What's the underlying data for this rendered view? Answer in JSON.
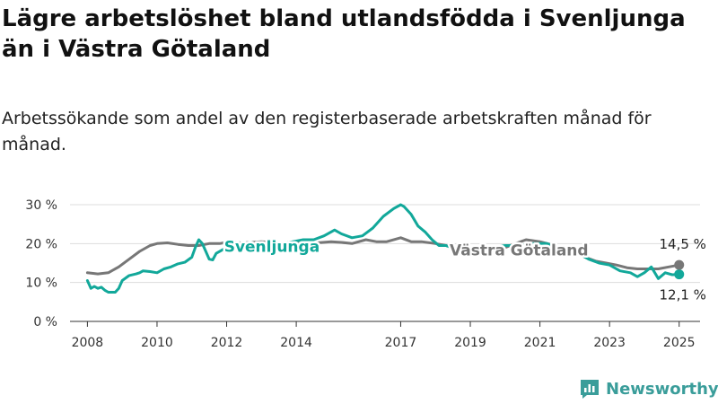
{
  "title": "Lägre arbetslöshet bland utlandsfödda i Svenljunga än i Västra Götaland",
  "subtitle": "Arbetssökande som andel av den registerbaserade arbetskraften månad för månad.",
  "brand": {
    "name": "Newsworthy",
    "icon": "newsworthy-logo-icon"
  },
  "colors": {
    "svenljunga": "#12a89a",
    "vastra": "#777777",
    "grid": "#dddddd",
    "axis": "#333333"
  },
  "chart_data": {
    "type": "line",
    "ylim": [
      0,
      30
    ],
    "yticks": [
      {
        "value": 0,
        "label": "0 %"
      },
      {
        "value": 10,
        "label": "10 %"
      },
      {
        "value": 20,
        "label": "20 %"
      },
      {
        "value": 30,
        "label": "30 %"
      }
    ],
    "xlim": [
      2007.5,
      2025.6
    ],
    "xticks": [
      {
        "value": 2008,
        "label": "2008"
      },
      {
        "value": 2010,
        "label": "2010"
      },
      {
        "value": 2012,
        "label": "2012"
      },
      {
        "value": 2014,
        "label": "2014"
      },
      {
        "value": 2017,
        "label": "2017"
      },
      {
        "value": 2019,
        "label": "2019"
      },
      {
        "value": 2021,
        "label": "2021"
      },
      {
        "value": 2023,
        "label": "2023"
      },
      {
        "value": 2025,
        "label": "2025"
      }
    ],
    "series": [
      {
        "name": "Svenljunga",
        "color": "#12a89a",
        "end_label": "12,1 %",
        "points": [
          [
            2008.0,
            10.5
          ],
          [
            2008.1,
            8.5
          ],
          [
            2008.2,
            9.0
          ],
          [
            2008.3,
            8.5
          ],
          [
            2008.4,
            8.8
          ],
          [
            2008.5,
            8.0
          ],
          [
            2008.6,
            7.5
          ],
          [
            2008.8,
            7.5
          ],
          [
            2008.9,
            8.5
          ],
          [
            2009.0,
            10.5
          ],
          [
            2009.2,
            11.8
          ],
          [
            2009.4,
            12.2
          ],
          [
            2009.5,
            12.5
          ],
          [
            2009.6,
            13.0
          ],
          [
            2009.8,
            12.8
          ],
          [
            2010.0,
            12.5
          ],
          [
            2010.2,
            13.5
          ],
          [
            2010.4,
            14.0
          ],
          [
            2010.6,
            14.8
          ],
          [
            2010.8,
            15.2
          ],
          [
            2011.0,
            16.5
          ],
          [
            2011.1,
            19.0
          ],
          [
            2011.2,
            21.0
          ],
          [
            2011.3,
            20.0
          ],
          [
            2011.4,
            18.0
          ],
          [
            2011.5,
            16.0
          ],
          [
            2011.6,
            15.8
          ],
          [
            2011.7,
            17.5
          ],
          [
            2011.9,
            18.5
          ],
          [
            2012.1,
            18.5
          ],
          [
            2012.3,
            18.8
          ],
          [
            2012.5,
            19.0
          ],
          [
            2012.8,
            18.5
          ],
          [
            2013.0,
            19.0
          ],
          [
            2013.3,
            19.5
          ],
          [
            2013.6,
            20.0
          ],
          [
            2013.9,
            20.5
          ],
          [
            2014.2,
            21.0
          ],
          [
            2014.5,
            21.0
          ],
          [
            2014.8,
            22.0
          ],
          [
            2015.1,
            23.5
          ],
          [
            2015.3,
            22.5
          ],
          [
            2015.6,
            21.5
          ],
          [
            2015.9,
            22.0
          ],
          [
            2016.2,
            24.0
          ],
          [
            2016.5,
            27.0
          ],
          [
            2016.8,
            29.0
          ],
          [
            2017.0,
            30.0
          ],
          [
            2017.1,
            29.5
          ],
          [
            2017.3,
            27.5
          ],
          [
            2017.5,
            24.5
          ],
          [
            2017.7,
            23.0
          ],
          [
            2017.9,
            21.0
          ],
          [
            2018.1,
            19.5
          ],
          [
            2018.3,
            19.5
          ],
          [
            2018.6,
            18.5
          ],
          [
            2019.0,
            18.5
          ],
          [
            2019.3,
            18.8
          ],
          [
            2019.6,
            19.0
          ],
          [
            2020.0,
            19.5
          ],
          [
            2020.4,
            19.5
          ],
          [
            2020.8,
            20.0
          ],
          [
            2021.2,
            20.0
          ],
          [
            2021.5,
            19.0
          ],
          [
            2021.8,
            18.0
          ],
          [
            2022.1,
            17.5
          ],
          [
            2022.4,
            16.0
          ],
          [
            2022.7,
            15.0
          ],
          [
            2023.0,
            14.5
          ],
          [
            2023.3,
            13.0
          ],
          [
            2023.6,
            12.5
          ],
          [
            2023.8,
            11.5
          ],
          [
            2024.0,
            12.5
          ],
          [
            2024.2,
            14.0
          ],
          [
            2024.4,
            11.0
          ],
          [
            2024.6,
            12.5
          ],
          [
            2024.8,
            12.0
          ],
          [
            2025.0,
            12.1
          ]
        ]
      },
      {
        "name": "Västra Götaland",
        "color": "#777777",
        "end_label": "14,5 %",
        "points": [
          [
            2008.0,
            12.5
          ],
          [
            2008.3,
            12.2
          ],
          [
            2008.6,
            12.5
          ],
          [
            2008.9,
            14.0
          ],
          [
            2009.2,
            16.0
          ],
          [
            2009.5,
            18.0
          ],
          [
            2009.8,
            19.5
          ],
          [
            2010.0,
            20.0
          ],
          [
            2010.3,
            20.2
          ],
          [
            2010.6,
            19.8
          ],
          [
            2010.9,
            19.5
          ],
          [
            2011.2,
            19.5
          ],
          [
            2011.5,
            20.0
          ],
          [
            2011.8,
            20.0
          ],
          [
            2012.1,
            20.5
          ],
          [
            2012.4,
            20.2
          ],
          [
            2012.7,
            20.3
          ],
          [
            2013.0,
            20.5
          ],
          [
            2013.3,
            20.3
          ],
          [
            2013.6,
            20.0
          ],
          [
            2014.0,
            20.2
          ],
          [
            2014.3,
            20.0
          ],
          [
            2014.6,
            20.2
          ],
          [
            2015.0,
            20.5
          ],
          [
            2015.3,
            20.3
          ],
          [
            2015.6,
            20.0
          ],
          [
            2016.0,
            21.0
          ],
          [
            2016.3,
            20.5
          ],
          [
            2016.6,
            20.5
          ],
          [
            2017.0,
            21.5
          ],
          [
            2017.3,
            20.5
          ],
          [
            2017.6,
            20.5
          ],
          [
            2018.0,
            20.0
          ],
          [
            2018.3,
            19.5
          ],
          [
            2018.6,
            19.0
          ],
          [
            2019.0,
            18.8
          ],
          [
            2019.3,
            18.5
          ],
          [
            2019.6,
            18.0
          ],
          [
            2020.0,
            19.0
          ],
          [
            2020.3,
            20.0
          ],
          [
            2020.6,
            21.0
          ],
          [
            2021.0,
            20.5
          ],
          [
            2021.3,
            19.8
          ],
          [
            2021.6,
            19.0
          ],
          [
            2022.0,
            18.0
          ],
          [
            2022.3,
            16.5
          ],
          [
            2022.6,
            15.5
          ],
          [
            2022.9,
            15.0
          ],
          [
            2023.2,
            14.5
          ],
          [
            2023.5,
            13.8
          ],
          [
            2023.8,
            13.5
          ],
          [
            2024.1,
            13.5
          ],
          [
            2024.4,
            13.5
          ],
          [
            2024.7,
            14.0
          ],
          [
            2025.0,
            14.5
          ]
        ]
      }
    ],
    "inline_labels": [
      {
        "series": "Svenljunga",
        "text": "Svenljunga",
        "x": 2013.3,
        "y": 17.9
      },
      {
        "series": "Västra Götaland",
        "text": "Västra Götaland",
        "x": 2020.4,
        "y": 17.0
      }
    ]
  }
}
